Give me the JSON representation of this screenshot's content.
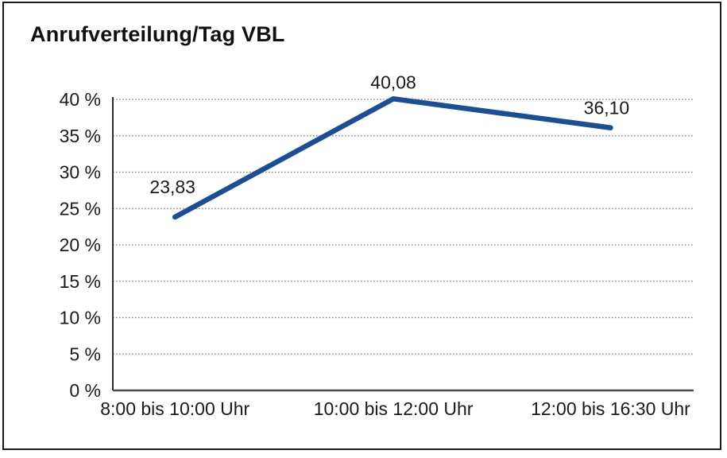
{
  "chart_data": {
    "type": "line",
    "title": "Anrufverteilung/Tag VBL",
    "categories": [
      "8:00 bis 10:00 Uhr",
      "10:00 bis 12:00 Uhr",
      "12:00 bis 16:30 Uhr"
    ],
    "values": [
      23.83,
      40.08,
      36.1
    ],
    "value_labels": [
      "23,83",
      "40,08",
      "36,10"
    ],
    "y_tick_values": [
      0,
      5,
      10,
      15,
      20,
      25,
      30,
      35,
      40
    ],
    "y_tick_labels": [
      "0 %",
      "5 %",
      "10 %",
      "15 %",
      "20 %",
      "25 %",
      "30 %",
      "35 %",
      "40 %"
    ],
    "ylim": [
      0,
      40
    ],
    "xlabel": "",
    "ylabel": "",
    "legend": "none",
    "grid": "horizontal-dotted",
    "colors": {
      "line": "#1B4E94",
      "gridline": "#7a7a7a",
      "y_axis": "#2e2e2e",
      "baseline": "#4a4a4a",
      "text": "#1a1a1a",
      "frame_border": "#1a1a1a",
      "background": "#ffffff"
    }
  }
}
